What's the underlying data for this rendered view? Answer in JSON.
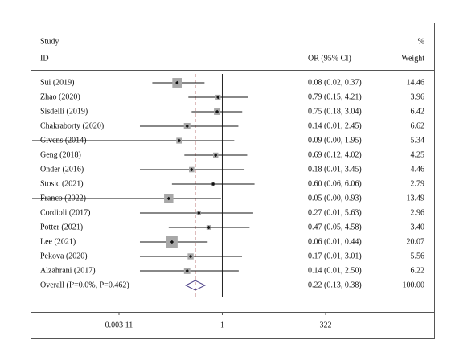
{
  "chart_data": {
    "type": "forest",
    "headers": {
      "study": "Study",
      "id": "ID",
      "estimate": "OR (95% CI)",
      "percent": "%",
      "weight": "Weight"
    },
    "categories": [
      "Sui (2019)",
      "Zhao (2020)",
      "Sisdelli (2019)",
      "Chakraborty (2020)",
      "Givens (2014)",
      "Geng (2018)",
      "Onder (2016)",
      "Stosic (2021)",
      "Franco (2022)",
      "Cordioli (2017)",
      "Potter (2021)",
      "Lee (2021)",
      "Pekova (2020)",
      "Alzahrani (2017)"
    ],
    "values": [
      0.08,
      0.79,
      0.75,
      0.14,
      0.09,
      0.69,
      0.18,
      0.6,
      0.05,
      0.27,
      0.47,
      0.06,
      0.17,
      0.14
    ],
    "lower": [
      0.02,
      0.15,
      0.18,
      0.01,
      0.0,
      0.12,
      0.01,
      0.06,
      0.0,
      0.01,
      0.05,
      0.01,
      0.01,
      0.01
    ],
    "upper": [
      0.37,
      4.21,
      3.04,
      2.45,
      1.95,
      4.02,
      3.45,
      6.06,
      0.93,
      5.63,
      4.58,
      0.44,
      3.01,
      2.5
    ],
    "value_labels": [
      "0.08 (0.02, 0.37)",
      "0.79 (0.15, 4.21)",
      "0.75 (0.18, 3.04)",
      "0.14 (0.01, 2.45)",
      "0.09 (0.00, 1.95)",
      "0.69 (0.12, 4.02)",
      "0.18 (0.01, 3.45)",
      "0.60 (0.06, 6.06)",
      "0.05 (0.00, 0.93)",
      "0.27 (0.01, 5.63)",
      "0.47 (0.05, 4.58)",
      "0.06 (0.01, 0.44)",
      "0.17 (0.01, 3.01)",
      "0.14 (0.01, 2.50)"
    ],
    "weights": [
      14.46,
      3.96,
      6.42,
      6.62,
      5.34,
      4.25,
      4.46,
      2.79,
      13.49,
      2.96,
      3.4,
      20.07,
      5.56,
      6.22
    ],
    "weight_labels": [
      "14.46",
      "3.96",
      "6.42",
      "6.62",
      "5.34",
      "4.25",
      "4.46",
      "2.79",
      "13.49",
      "2.96",
      "3.40",
      "20.07",
      "5.56",
      "6.22"
    ],
    "overall": {
      "label": "Overall (I²=0.0%, P=0.462)",
      "value": 0.22,
      "lower": 0.13,
      "upper": 0.38,
      "value_label": "0.22 (0.13, 0.38)",
      "weight": 100,
      "weight_label": "100.00"
    },
    "log_x": true,
    "xlim": [
      0.00311,
      322
    ],
    "xticks": [
      {
        "value": 0.00311,
        "label": "0.003 11"
      },
      1,
      322
    ],
    "box_color": "#a8a8a8",
    "diamond_color": "#4b3f86",
    "ref_color": "#8b1a1a"
  }
}
